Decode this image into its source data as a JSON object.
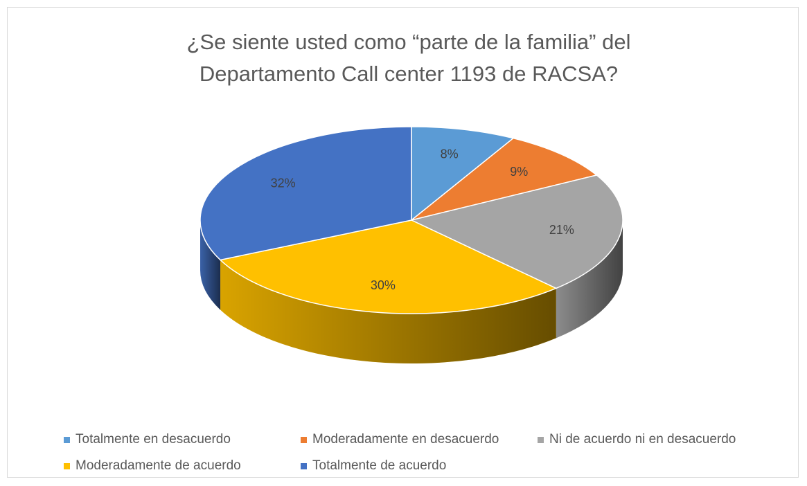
{
  "chart_data": {
    "type": "pie",
    "title": "¿Se siente usted como “parte de la familia” del Departamento Call center 1193 de RACSA?",
    "categories": [
      "Totalmente en desacuerdo",
      "Moderadamente en desacuerdo",
      "Ni de acuerdo ni en desacuerdo",
      "Moderadamente de acuerdo",
      "Totalmente de acuerdo"
    ],
    "values": [
      8,
      9,
      21,
      30,
      32
    ],
    "value_labels": [
      "8%",
      "9%",
      "21%",
      "30%",
      "32%"
    ],
    "colors": [
      "#5b9bd5",
      "#ed7d31",
      "#a5a5a5",
      "#ffc000",
      "#4472c4"
    ],
    "legend": "bottom"
  }
}
